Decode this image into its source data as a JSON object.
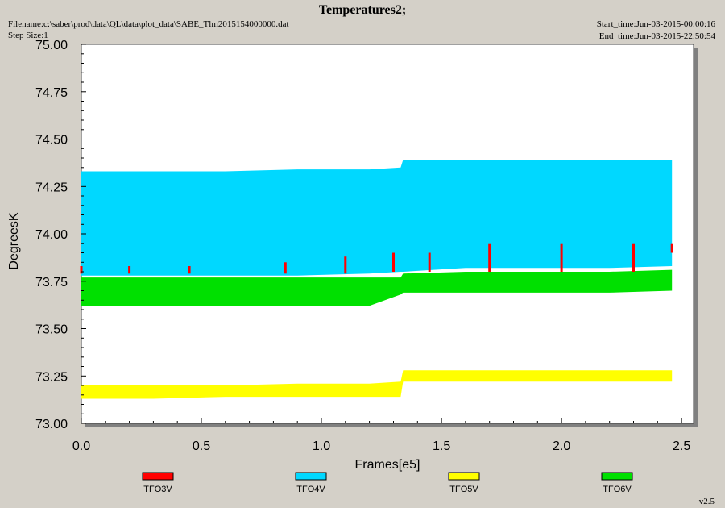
{
  "header": {
    "filename": "Filename:c:\\saber\\prod\\data\\QL\\data\\plot_data\\SABE_Tlm2015154000000.dat",
    "step_size": "Step Size:1",
    "start_time": "Start_time:Jun-03-2015-00:00:16",
    "end_time": "End_time:Jun-03-2015-22:50:54",
    "version": "v2.5"
  },
  "chart_data": {
    "type": "line",
    "title": "Temperatures2;",
    "xlabel": "Frames[e5]",
    "ylabel": "DegreesK",
    "xlim": [
      0,
      2.55
    ],
    "ylim": [
      73.0,
      75.0
    ],
    "xticks": [
      "0.0",
      "0.5",
      "1.0",
      "1.5",
      "2.0",
      "2.5"
    ],
    "yticks": [
      "73.00",
      "73.25",
      "73.50",
      "73.75",
      "74.00",
      "74.25",
      "74.50",
      "74.75",
      "75.00"
    ],
    "grid": false,
    "legend_position": "bottom",
    "series": [
      {
        "name": "TFO3V",
        "color": "#ff0000",
        "x": [
          0.0,
          0.2,
          0.45,
          0.85,
          1.1,
          1.3,
          1.45,
          1.7,
          2.0,
          2.3,
          2.46
        ],
        "y_low": [
          73.79,
          73.79,
          73.79,
          73.79,
          73.79,
          73.8,
          73.8,
          73.8,
          73.8,
          73.8,
          73.9
        ],
        "y_high": [
          73.83,
          73.83,
          73.83,
          73.85,
          73.88,
          73.9,
          73.9,
          73.95,
          73.95,
          73.95,
          73.95
        ]
      },
      {
        "name": "TFO4V",
        "color": "#00d8ff",
        "x": [
          0.0,
          0.3,
          0.6,
          0.9,
          1.2,
          1.33,
          1.34,
          1.6,
          1.9,
          2.2,
          2.46
        ],
        "y_low": [
          73.78,
          73.78,
          73.78,
          73.78,
          73.79,
          73.8,
          73.8,
          73.82,
          73.82,
          73.82,
          73.83
        ],
        "y_high": [
          74.33,
          74.33,
          74.33,
          74.34,
          74.34,
          74.35,
          74.39,
          74.39,
          74.39,
          74.39,
          74.39
        ]
      },
      {
        "name": "TFO5V",
        "color": "#ffff00",
        "x": [
          0.0,
          0.3,
          0.6,
          0.9,
          1.2,
          1.33,
          1.34,
          1.6,
          1.9,
          2.2,
          2.46
        ],
        "y_low": [
          73.13,
          73.13,
          73.14,
          73.14,
          73.14,
          73.14,
          73.22,
          73.22,
          73.22,
          73.22,
          73.22
        ],
        "y_high": [
          73.2,
          73.2,
          73.2,
          73.21,
          73.21,
          73.22,
          73.28,
          73.28,
          73.28,
          73.28,
          73.28
        ]
      },
      {
        "name": "TFO6V",
        "color": "#00e000",
        "x": [
          0.0,
          0.3,
          0.6,
          0.9,
          1.2,
          1.33,
          1.34,
          1.6,
          1.9,
          2.2,
          2.46
        ],
        "y_low": [
          73.62,
          73.62,
          73.62,
          73.62,
          73.62,
          73.68,
          73.69,
          73.69,
          73.69,
          73.69,
          73.7
        ],
        "y_high": [
          73.77,
          73.77,
          73.77,
          73.77,
          73.77,
          73.77,
          73.79,
          73.8,
          73.8,
          73.8,
          73.81
        ]
      }
    ]
  }
}
